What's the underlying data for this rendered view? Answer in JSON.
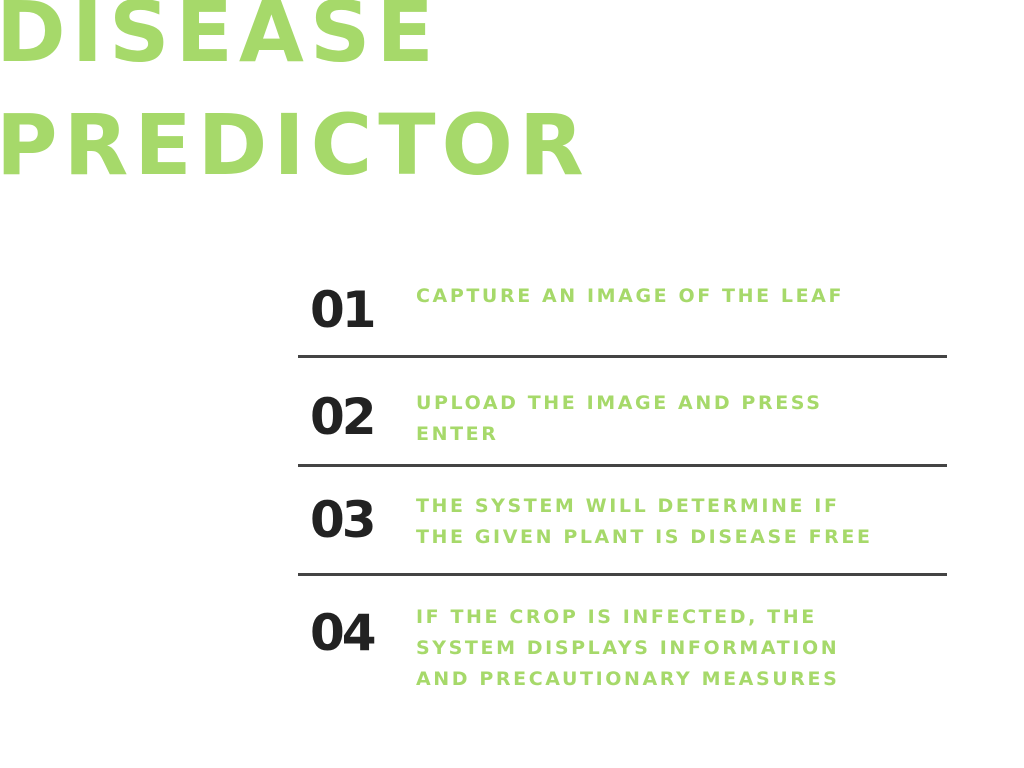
{
  "title": {
    "line1": "DISEASE",
    "line2": "PREDICTOR"
  },
  "steps": [
    {
      "number": "01",
      "text": "CAPTURE AN IMAGE OF THE LEAF"
    },
    {
      "number": "02",
      "text": "UPLOAD THE IMAGE AND PRESS\nENTER"
    },
    {
      "number": "03",
      "text": "THE SYSTEM WILL DETERMINE IF\nTHE GIVEN PLANT IS DISEASE FREE"
    },
    {
      "number": "04",
      "text": "IF THE CROP IS INFECTED, THE\nSYSTEM DISPLAYS INFORMATION\nAND PRECAUTIONARY MEASURES"
    }
  ],
  "colors": {
    "accent": "#a6d96a",
    "number": "#222222",
    "divider": "#444444",
    "background": "#ffffff"
  }
}
